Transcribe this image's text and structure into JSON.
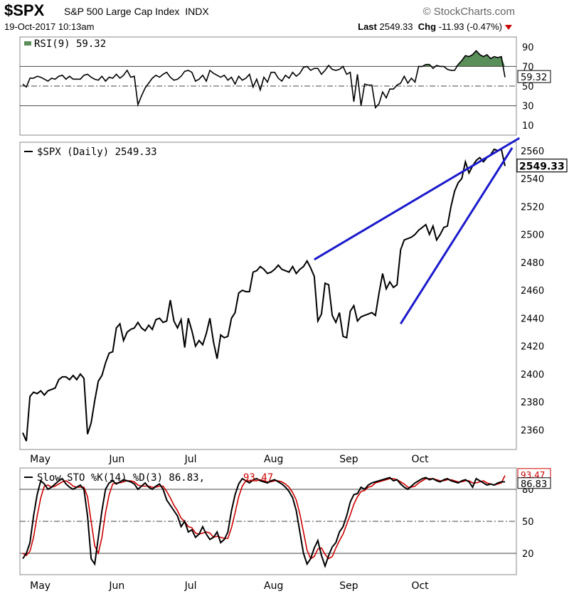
{
  "header": {
    "symbol": "$SPX",
    "name": "S&P 500 Large Cap Index",
    "exchange": "INDX",
    "datetime": "19-Oct-2017 10:13am",
    "brand": "© StockCharts.com",
    "last_label": "Last",
    "last_value": "2549.33",
    "chg_label": "Chg",
    "chg_value": "-11.93 (-0.47%)",
    "chg_color": "#cc0000"
  },
  "chart_data": [
    {
      "type": "line",
      "title": "RSI(9) 59.32",
      "current_label": "59.32",
      "ylim": [
        0,
        100
      ],
      "yticks": [
        10,
        30,
        50,
        70,
        90
      ],
      "reference_lines": [
        70,
        50,
        30
      ],
      "overbought_fill": "#5a8f5a",
      "y": [
        52,
        49,
        58,
        58,
        60,
        59,
        57,
        55,
        58,
        57,
        60,
        61,
        57,
        60,
        57,
        57,
        57,
        61,
        62,
        59,
        57,
        56,
        60,
        55,
        59,
        58,
        62,
        58,
        61,
        66,
        59,
        60,
        31,
        40,
        48,
        53,
        58,
        61,
        59,
        62,
        64,
        59,
        56,
        57,
        60,
        65,
        66,
        64,
        55,
        57,
        61,
        55,
        66,
        63,
        61,
        59,
        61,
        56,
        59,
        52,
        60,
        56,
        58,
        62,
        49,
        57,
        46,
        59,
        54,
        64,
        64,
        58,
        55,
        61,
        58,
        64,
        60,
        63,
        69,
        70,
        66,
        68,
        68,
        62,
        66,
        71,
        67,
        66,
        67,
        70,
        62,
        64,
        34,
        62,
        30,
        52,
        51,
        51,
        28,
        32,
        44,
        38,
        47,
        47,
        51,
        53,
        60,
        53,
        58,
        54,
        70,
        70,
        72,
        72,
        68,
        71,
        70,
        70,
        67,
        66,
        66,
        72,
        76,
        81,
        80,
        82,
        86,
        82,
        80,
        82,
        78,
        80,
        79,
        80,
        59
      ]
    },
    {
      "type": "line",
      "title": "$SPX (Daily) 2549.33",
      "current_label": "2549.33",
      "ylim": [
        2346,
        2566
      ],
      "yticks": [
        2360,
        2380,
        2400,
        2420,
        2440,
        2460,
        2480,
        2500,
        2520,
        2540,
        2560
      ],
      "x_labels": [
        "May",
        "Jun",
        "Jul",
        "Aug",
        "Sep",
        "Oct"
      ],
      "y": [
        2358,
        2352,
        2384,
        2387,
        2386,
        2388,
        2385,
        2388,
        2389,
        2390,
        2396,
        2398,
        2398,
        2396,
        2399,
        2396,
        2400,
        2397,
        2357,
        2365,
        2381,
        2395,
        2399,
        2408,
        2415,
        2416,
        2433,
        2436,
        2424,
        2430,
        2432,
        2433,
        2437,
        2433,
        2431,
        2435,
        2432,
        2439,
        2440,
        2437,
        2438,
        2453,
        2438,
        2433,
        2439,
        2419,
        2440,
        2431,
        2420,
        2424,
        2421,
        2429,
        2440,
        2423,
        2411,
        2428,
        2426,
        2427,
        2440,
        2444,
        2458,
        2460,
        2459,
        2459,
        2473,
        2474,
        2477,
        2475,
        2472,
        2473,
        2475,
        2478,
        2475,
        2474,
        2473,
        2477,
        2472,
        2475,
        2477,
        2481,
        2476,
        2470,
        2438,
        2443,
        2465,
        2464,
        2442,
        2437,
        2444,
        2427,
        2426,
        2445,
        2449,
        2438,
        2441,
        2442,
        2443,
        2444,
        2442,
        2458,
        2472,
        2461,
        2466,
        2462,
        2464,
        2489,
        2496,
        2497,
        2498,
        2500,
        2503,
        2505,
        2507,
        2500,
        2506,
        2496,
        2500,
        2505,
        2506,
        2520,
        2531,
        2537,
        2540,
        2552,
        2544,
        2549,
        2553,
        2555,
        2552,
        2555,
        2557,
        2561,
        2560,
        2561,
        2549
      ],
      "trendlines": [
        {
          "x0": 81,
          "y0": 2482,
          "x1": 138,
          "y1": 2569
        },
        {
          "x0": 105,
          "y0": 2436,
          "x1": 136,
          "y1": 2562
        }
      ],
      "trendline_color": "#1a1acc"
    },
    {
      "type": "line",
      "title": "Slow STO %K(14) %D(3) 86.83, 93.47",
      "title_prefix": "Slow STO %K(14) %D(3)",
      "k_label": "86.83",
      "d_label": "93.47",
      "ylim": [
        0,
        100
      ],
      "yticks": [
        20,
        50,
        80
      ],
      "reference_lines": [
        80,
        50,
        20
      ],
      "x_labels": [
        "May",
        "Jun",
        "Jul",
        "Aug",
        "Sep",
        "Oct"
      ],
      "series": [
        {
          "color": "#000000",
          "values": [
            15,
            20,
            30,
            55,
            75,
            88,
            85,
            80,
            82,
            85,
            88,
            90,
            85,
            82,
            80,
            82,
            84,
            80,
            55,
            15,
            10,
            35,
            60,
            80,
            86,
            88,
            85,
            87,
            89,
            88,
            87,
            85,
            80,
            83,
            86,
            82,
            80,
            83,
            85,
            80,
            70,
            65,
            60,
            55,
            45,
            50,
            40,
            42,
            35,
            38,
            45,
            38,
            33,
            35,
            40,
            30,
            33,
            40,
            60,
            75,
            85,
            90,
            88,
            86,
            89,
            90,
            88,
            87,
            86,
            88,
            89,
            87,
            85,
            82,
            78,
            72,
            60,
            40,
            20,
            10,
            15,
            25,
            32,
            18,
            8,
            18,
            26,
            30,
            40,
            45,
            55,
            68,
            75,
            76,
            82,
            80,
            84,
            86,
            87,
            88,
            89,
            90,
            91,
            88,
            89,
            85,
            82,
            80,
            83,
            86,
            88,
            90,
            91,
            89,
            90,
            88,
            87,
            89,
            90,
            88,
            87,
            86,
            88,
            89,
            87,
            82,
            90,
            88,
            86,
            84,
            85,
            84,
            86,
            87,
            87
          ]
        },
        {
          "color": "#cc0000",
          "values": [
            20,
            18,
            22,
            35,
            55,
            72,
            83,
            84,
            82,
            83,
            85,
            87,
            88,
            86,
            83,
            82,
            82,
            82,
            73,
            50,
            27,
            20,
            35,
            58,
            75,
            85,
            86,
            86,
            87,
            88,
            88,
            87,
            84,
            83,
            83,
            83,
            82,
            82,
            83,
            83,
            78,
            72,
            65,
            60,
            53,
            50,
            45,
            44,
            39,
            38,
            39,
            40,
            39,
            35,
            36,
            35,
            34,
            34,
            44,
            58,
            73,
            83,
            88,
            88,
            88,
            88,
            89,
            88,
            87,
            87,
            88,
            88,
            87,
            85,
            82,
            77,
            70,
            57,
            40,
            23,
            15,
            17,
            24,
            25,
            19,
            15,
            17,
            25,
            32,
            38,
            47,
            56,
            66,
            73,
            78,
            79,
            82,
            83,
            86,
            87,
            88,
            89,
            90,
            90,
            89,
            87,
            85,
            82,
            82,
            83,
            86,
            88,
            90,
            90,
            90,
            89,
            88,
            88,
            89,
            89,
            88,
            87,
            87,
            88,
            88,
            86,
            86,
            87,
            88,
            86,
            85,
            84,
            85,
            86,
            93
          ]
        }
      ]
    }
  ]
}
